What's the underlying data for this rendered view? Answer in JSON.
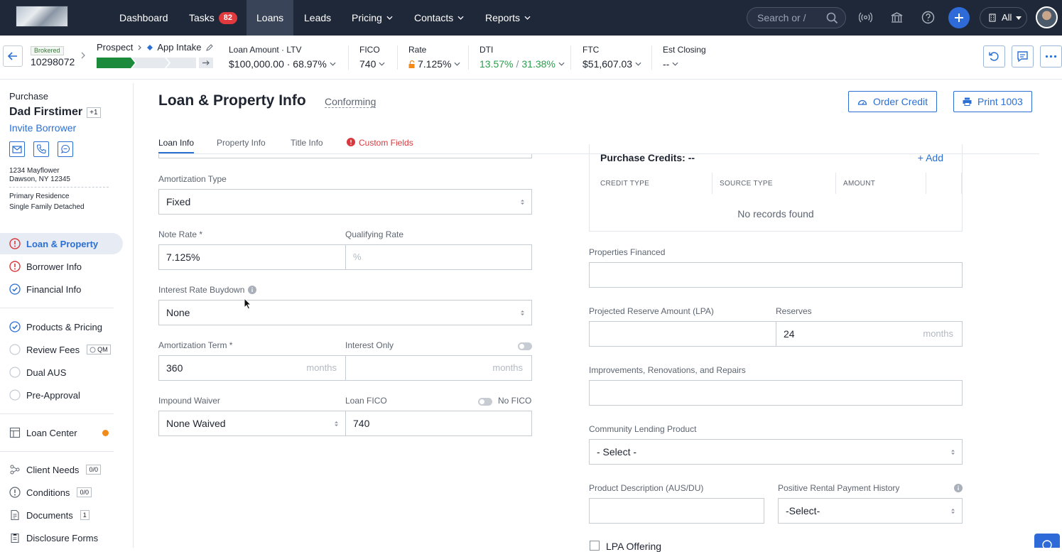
{
  "nav": {
    "items": [
      {
        "label": "Dashboard"
      },
      {
        "label": "Tasks",
        "badge": "82"
      },
      {
        "label": "Loans"
      },
      {
        "label": "Leads"
      },
      {
        "label": "Pricing"
      },
      {
        "label": "Contacts"
      },
      {
        "label": "Reports"
      }
    ],
    "search_placeholder": "Search or /",
    "all_label": "All",
    "accent": "#2e6bd8",
    "bg": "#1f2838"
  },
  "loan_header": {
    "brokered": "Brokered",
    "loan_number": "10298072",
    "stage_from": "Prospect",
    "stage_to": "App Intake",
    "amount_ltv_label": "Loan Amount · LTV",
    "amount_ltv_value": "$100,000.00 · 68.97%",
    "fico_label": "FICO",
    "fico_value": "740",
    "rate_label": "Rate",
    "rate_value": "7.125%",
    "dti_label": "DTI",
    "dti_value_a": "13.57%",
    "dti_sep": "/",
    "dti_value_b": "31.38%",
    "ftc_label": "FTC",
    "ftc_value": "$51,607.03",
    "est_closing_label": "Est Closing",
    "est_closing_value": "--"
  },
  "sidebar": {
    "purpose": "Purchase",
    "borrower_name": "Dad Firstimer",
    "extra_borrowers": "+1",
    "invite": "Invite Borrower",
    "address_line1": "1234 Mayflower",
    "address_line2": "Dawson, NY 12345",
    "occupancy": "Primary Residence",
    "property_type": "Single Family Detached",
    "group1": [
      {
        "label": "Loan & Property",
        "status": "error"
      },
      {
        "label": "Borrower Info",
        "status": "error"
      },
      {
        "label": "Financial Info",
        "status": "done"
      }
    ],
    "group2": [
      {
        "label": "Products & Pricing",
        "status": "done"
      },
      {
        "label": "Review Fees",
        "status": "pending",
        "tag": "QM"
      },
      {
        "label": "Dual AUS",
        "status": "pending"
      },
      {
        "label": "Pre-Approval",
        "status": "pending"
      }
    ],
    "loan_center": "Loan Center",
    "group3": [
      {
        "label": "Client Needs",
        "tag": "0/0"
      },
      {
        "label": "Conditions",
        "tag": "0/0"
      },
      {
        "label": "Documents",
        "tag": "1"
      },
      {
        "label": "Disclosure Forms"
      }
    ]
  },
  "main": {
    "title": "Loan & Property Info",
    "subtitle": "Conforming",
    "order_credit": "Order Credit",
    "print": "Print 1003",
    "tabs": [
      "Loan Info",
      "Property Info",
      "Title Info",
      "Custom Fields"
    ],
    "left": {
      "amortization_type_label": "Amortization Type",
      "amortization_type_value": "Fixed",
      "note_rate_label": "Note Rate *",
      "note_rate_value": "7.125%",
      "qualifying_rate_label": "Qualifying Rate",
      "qualifying_rate_placeholder": "%",
      "buydown_label": "Interest Rate Buydown",
      "buydown_value": "None",
      "amort_term_label": "Amortization Term *",
      "amort_term_value": "360",
      "months": "months",
      "interest_only_label": "Interest Only",
      "impound_label": "Impound Waiver",
      "impound_value": "None Waived",
      "loan_fico_label": "Loan FICO",
      "no_fico_label": "No FICO",
      "loan_fico_value": "740"
    },
    "right": {
      "purchase_credits": "Purchase Credits: --",
      "add": "Add",
      "columns": [
        "CREDIT TYPE",
        "SOURCE TYPE",
        "AMOUNT"
      ],
      "no_records": "No records found",
      "properties_financed_label": "Properties Financed",
      "projected_reserve_label": "Projected Reserve Amount (LPA)",
      "reserves_label": "Reserves",
      "reserves_value": "24",
      "improvements_label": "Improvements, Renovations, and Repairs",
      "community_label": "Community Lending Product",
      "community_value": "- Select -",
      "product_desc_label": "Product Description (AUS/DU)",
      "positive_rental_label": "Positive Rental Payment History",
      "positive_rental_value": "-Select-",
      "lpa_offering": "LPA Offering"
    }
  }
}
